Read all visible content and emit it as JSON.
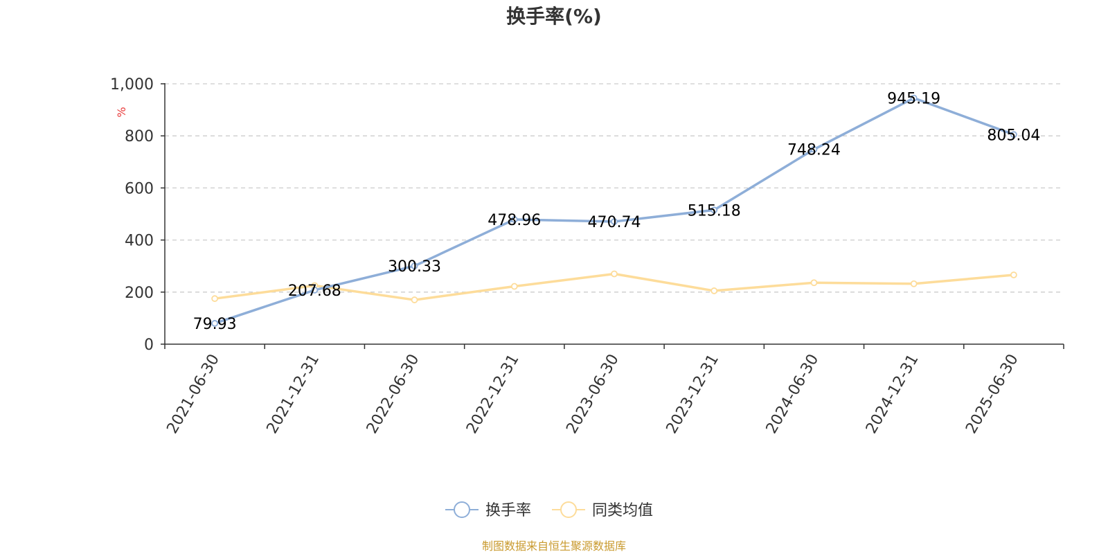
{
  "chart_data": {
    "type": "line",
    "title": "换手率(%)",
    "ylabel": "%",
    "ylim": [
      0,
      1000
    ],
    "yticks": [
      "0",
      "200",
      "400",
      "600",
      "800",
      "1,000"
    ],
    "ytick_values": [
      0,
      200,
      400,
      600,
      800,
      1000
    ],
    "grid": true,
    "legend_position": "bottom-center",
    "categories": [
      "2021-06-30",
      "2021-12-31",
      "2022-06-30",
      "2022-12-31",
      "2023-06-30",
      "2023-12-31",
      "2024-06-30",
      "2024-12-31",
      "2025-06-30"
    ],
    "series": [
      {
        "name": "换手率",
        "color": "#8eaed8",
        "values": [
          79.93,
          207.68,
          300.33,
          478.96,
          470.74,
          515.18,
          748.24,
          945.19,
          805.04
        ],
        "labels": [
          "79.93",
          "207.68",
          "300.33",
          "478.96",
          "470.74",
          "515.18",
          "748.24",
          "945.19",
          "805.04"
        ]
      },
      {
        "name": "同类均值",
        "color": "#fddc9a",
        "values": [
          175,
          225,
          170,
          222,
          270,
          205,
          236,
          232,
          266
        ]
      }
    ]
  },
  "source_text": "制图数据来自恒生聚源数据库",
  "colors": {
    "axis": "#333333",
    "grid": "#cccccc",
    "unit": "#e83a3a",
    "source": "#c99a2e"
  }
}
